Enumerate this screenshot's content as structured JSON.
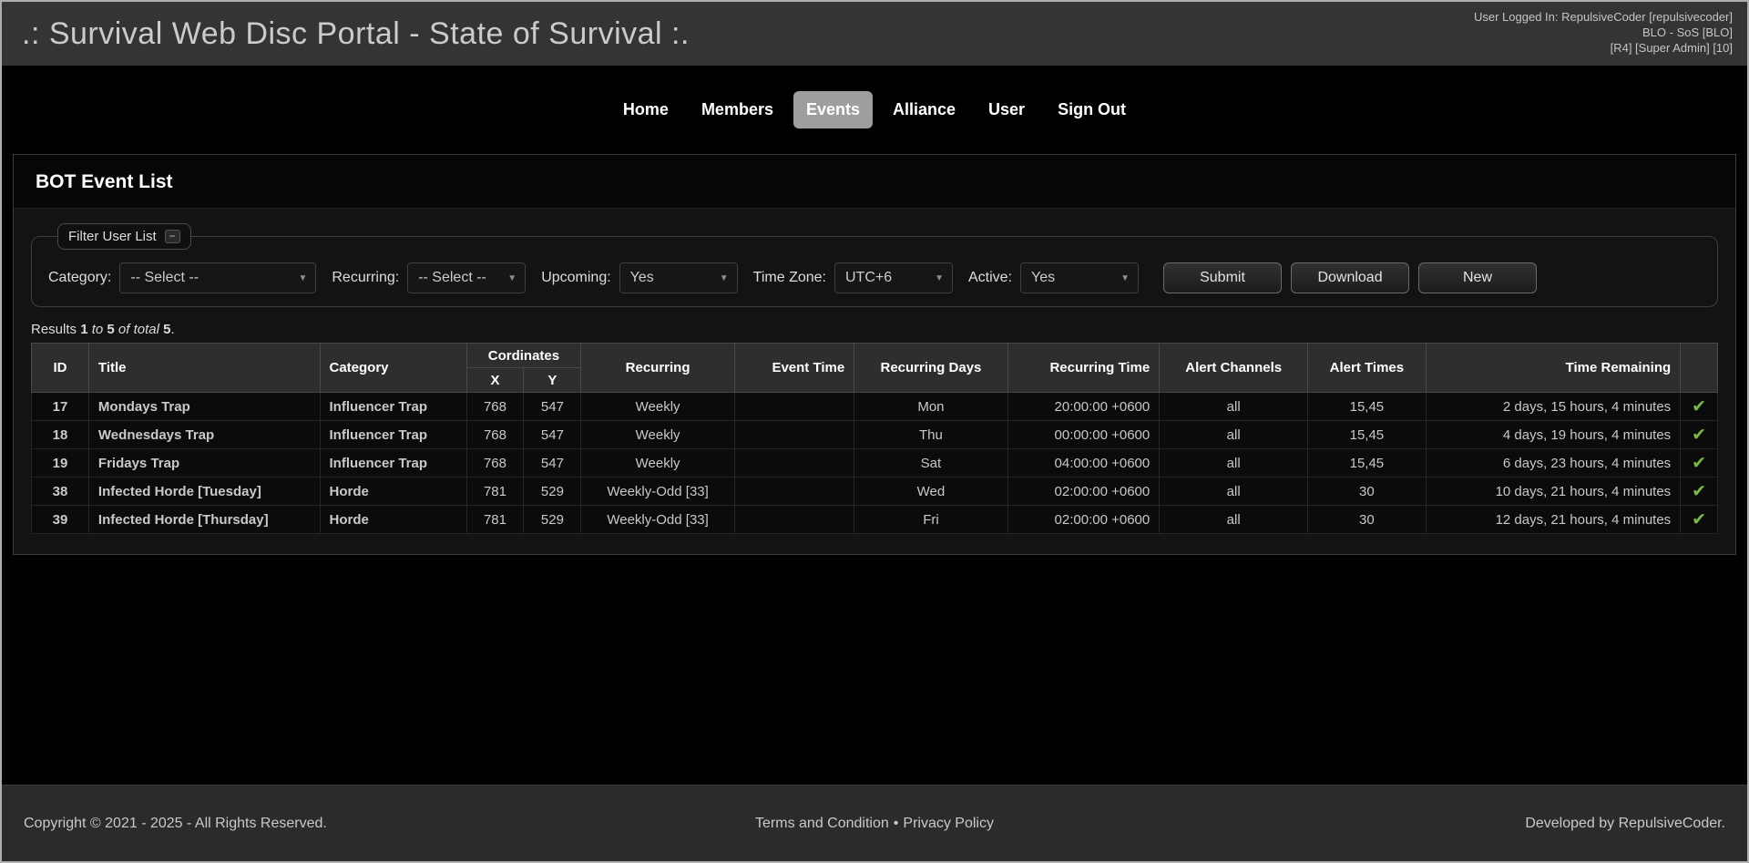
{
  "colors": {
    "check_green": "#7ab648",
    "nav_active_bg": "#9e9e9e"
  },
  "icons": {
    "check": "✔",
    "chevron_down": "▼",
    "collapse": "−"
  },
  "header": {
    "title": ".: Survival Web Disc Portal - State of Survival :.",
    "user_info": [
      "User Logged In: RepulsiveCoder [repulsivecoder]",
      "BLO - SoS [BLO]",
      "[R4] [Super Admin] [10]"
    ]
  },
  "nav": {
    "items": [
      {
        "label": "Home"
      },
      {
        "label": "Members"
      },
      {
        "label": "Events"
      },
      {
        "label": "Alliance"
      },
      {
        "label": "User"
      },
      {
        "label": "Sign Out"
      }
    ]
  },
  "panel": {
    "title": "BOT Event List",
    "filter": {
      "legend": "Filter User List",
      "fields": [
        {
          "label": "Category:",
          "value": "-- Select --"
        },
        {
          "label": "Recurring:",
          "value": "-- Select --"
        },
        {
          "label": "Upcoming:",
          "value": "Yes"
        },
        {
          "label": "Time Zone:",
          "value": "UTC+6"
        },
        {
          "label": "Active:",
          "value": "Yes"
        }
      ],
      "buttons": [
        "Submit",
        "Download",
        "New"
      ]
    },
    "results": {
      "prefix": "Results",
      "from": "1",
      "to_word": "to",
      "to": "5",
      "of_word": "of total",
      "total": "5",
      "period": "."
    },
    "table": {
      "headers": {
        "id": "ID",
        "title": "Title",
        "category": "Category",
        "coordinates": "Cordinates",
        "x": "X",
        "y": "Y",
        "recurring": "Recurring",
        "event_time": "Event Time",
        "recurring_days": "Recurring Days",
        "recurring_time": "Recurring Time",
        "alert_channels": "Alert Channels",
        "alert_times": "Alert Times",
        "time_remaining": "Time Remaining"
      },
      "rows": [
        [
          "17",
          "Mondays Trap",
          "Influencer Trap",
          "768",
          "547",
          "Weekly",
          "",
          "Mon",
          "20:00:00 +0600",
          "all",
          "15,45",
          "2 days, 15 hours, 4 minutes"
        ],
        [
          "18",
          "Wednesdays Trap",
          "Influencer Trap",
          "768",
          "547",
          "Weekly",
          "",
          "Thu",
          "00:00:00 +0600",
          "all",
          "15,45",
          "4 days, 19 hours, 4 minutes"
        ],
        [
          "19",
          "Fridays Trap",
          "Influencer Trap",
          "768",
          "547",
          "Weekly",
          "",
          "Sat",
          "04:00:00 +0600",
          "all",
          "15,45",
          "6 days, 23 hours, 4 minutes"
        ],
        [
          "38",
          "Infected Horde [Tuesday]",
          "Horde",
          "781",
          "529",
          "Weekly-Odd [33]",
          "",
          "Wed",
          "02:00:00 +0600",
          "all",
          "30",
          "10 days, 21 hours, 4 minutes"
        ],
        [
          "39",
          "Infected Horde [Thursday]",
          "Horde",
          "781",
          "529",
          "Weekly-Odd [33]",
          "",
          "Fri",
          "02:00:00 +0600",
          "all",
          "30",
          "12 days, 21 hours, 4 minutes"
        ]
      ]
    }
  },
  "footer": {
    "copyright": "Copyright © 2021 - 2025 - All Rights Reserved.",
    "links": [
      "Terms and Condition",
      "Privacy Policy"
    ],
    "separator": "•",
    "developer": "Developed by RepulsiveCoder."
  }
}
